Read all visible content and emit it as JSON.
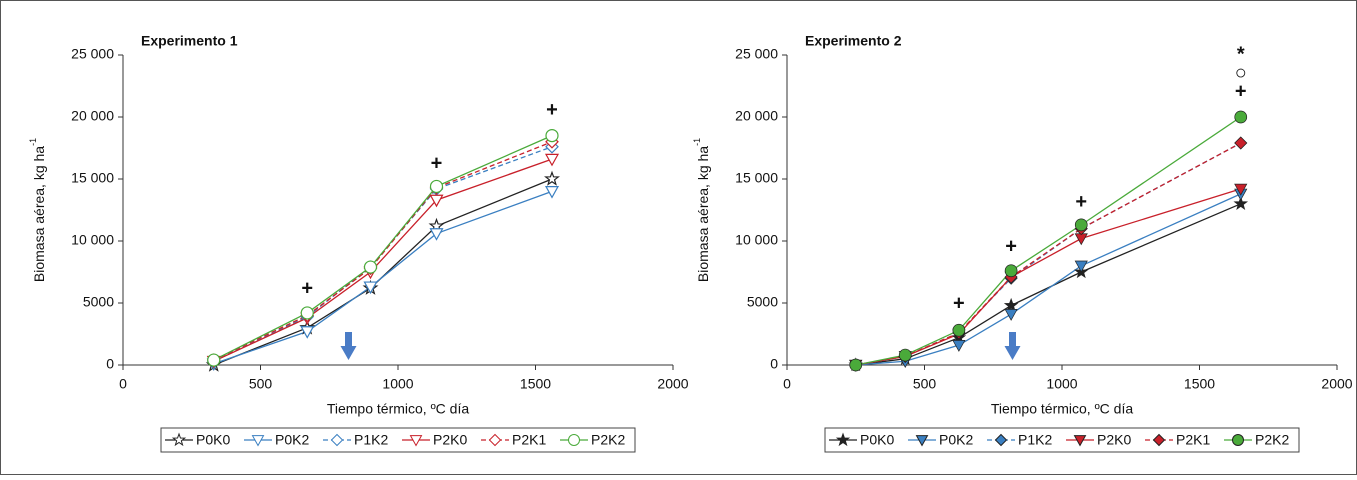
{
  "chart_data": [
    {
      "type": "line",
      "title": "Experimento 1",
      "title_color": "#2e8b3a",
      "x_label": "Tiempo térmico, ºC día",
      "y_label": "Biomasa aérea, kg ha",
      "y_label_sup": "-1",
      "xlim": [
        0,
        2000
      ],
      "xticks": [
        0,
        500,
        1000,
        1500,
        2000
      ],
      "ylim": [
        0,
        25000
      ],
      "yticks": [
        0,
        5000,
        {
          "value": 10000,
          "label": "10 000"
        },
        {
          "value": 15000,
          "label": "15 000"
        },
        {
          "value": 20000,
          "label": "20 000"
        },
        {
          "value": 25000,
          "label": "25 000"
        }
      ],
      "x": [
        330,
        670,
        900,
        1140,
        1560
      ],
      "filled": false,
      "arrow_x": 820,
      "series": [
        {
          "name": "P0K0",
          "color": "#222222",
          "marker": "star",
          "dashed": false,
          "values": [
            0,
            3000,
            6200,
            11200,
            15000
          ]
        },
        {
          "name": "P0K2",
          "color": "#3a7fc1",
          "marker": "tri",
          "dashed": false,
          "values": [
            100,
            2700,
            6300,
            10600,
            14000
          ]
        },
        {
          "name": "P1K2",
          "color": "#3a7fc1",
          "marker": "diamond",
          "dashed": true,
          "values": [
            300,
            3900,
            7900,
            14200,
            17600
          ]
        },
        {
          "name": "P2K0",
          "color": "#c8202a",
          "marker": "tri",
          "dashed": false,
          "values": [
            300,
            3800,
            7500,
            13300,
            16600
          ]
        },
        {
          "name": "P2K1",
          "color": "#c8202a",
          "marker": "diamond",
          "dashed": true,
          "values": [
            400,
            4000,
            7800,
            14300,
            18000
          ]
        },
        {
          "name": "P2K2",
          "color": "#4aaa3a",
          "marker": "circle",
          "dashed": false,
          "values": [
            400,
            4200,
            7900,
            14400,
            18500
          ]
        }
      ],
      "annotations": [
        {
          "text": "+",
          "x": 670,
          "y": 6100
        },
        {
          "text": "+",
          "x": 1140,
          "y": 16200
        },
        {
          "text": "+",
          "x": 1560,
          "y": 20500
        }
      ]
    },
    {
      "type": "line",
      "title": "Experimento 2",
      "title_color": "#2e8b3a",
      "x_label": "Tiempo térmico, ºC día",
      "y_label": "Biomasa aérea, kg ha",
      "y_label_sup": "-1",
      "xlim": [
        0,
        2000
      ],
      "xticks": [
        0,
        500,
        1000,
        1500,
        2000
      ],
      "ylim": [
        0,
        25000
      ],
      "yticks": [
        0,
        5000,
        {
          "value": 10000,
          "label": "10 000"
        },
        {
          "value": 15000,
          "label": "15 000"
        },
        {
          "value": 20000,
          "label": "20 000"
        },
        {
          "value": 25000,
          "label": "25 000"
        }
      ],
      "x": [
        250,
        430,
        625,
        815,
        1070,
        1650
      ],
      "filled": true,
      "arrow_x": 820,
      "series": [
        {
          "name": "P0K0",
          "color": "#222222",
          "marker": "star",
          "dashed": false,
          "values": [
            0,
            500,
            2200,
            4800,
            7500,
            13000
          ]
        },
        {
          "name": "P0K2",
          "color": "#3a7fc1",
          "marker": "tri",
          "dashed": false,
          "values": [
            0,
            300,
            1600,
            4100,
            8000,
            13800
          ]
        },
        {
          "name": "P1K2",
          "color": "#3a7fc1",
          "marker": "diamond",
          "dashed": true,
          "values": [
            0,
            700,
            2600,
            7000,
            11000,
            17900
          ]
        },
        {
          "name": "P2K0",
          "color": "#c8202a",
          "marker": "tri",
          "dashed": false,
          "values": [
            0,
            700,
            2500,
            7100,
            10200,
            14200
          ]
        },
        {
          "name": "P2K1",
          "color": "#c8202a",
          "marker": "diamond",
          "dashed": true,
          "values": [
            0,
            700,
            2600,
            7100,
            11000,
            17900
          ]
        },
        {
          "name": "P2K2",
          "color": "#4aaa3a",
          "marker": "circle",
          "dashed": false,
          "values": [
            0,
            800,
            2800,
            7600,
            11300,
            20000
          ]
        }
      ],
      "annotations": [
        {
          "text": "+",
          "x": 625,
          "y": 4900
        },
        {
          "text": "+",
          "x": 815,
          "y": 9500
        },
        {
          "text": "+",
          "x": 1070,
          "y": 13100
        },
        {
          "text": "+",
          "x": 1650,
          "y": 22000
        },
        {
          "text": "○",
          "x": 1650,
          "y": 23500
        },
        {
          "text": "*",
          "x": 1650,
          "y": 25000
        }
      ]
    }
  ]
}
